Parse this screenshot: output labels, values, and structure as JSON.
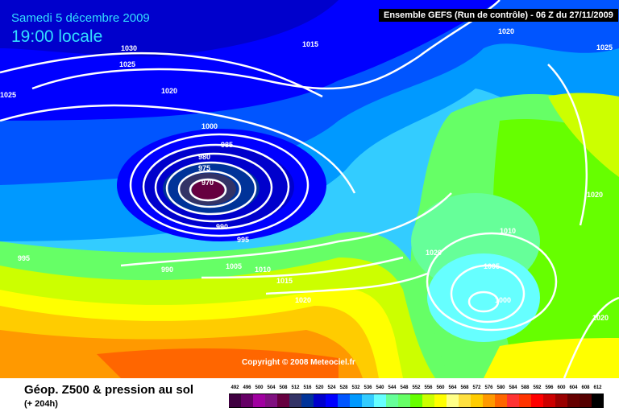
{
  "header": {
    "date": "Samedi 5 décembre 2009",
    "time": "19:00 locale",
    "run_info": "Ensemble GEFS (Run de contrôle)  -  06 Z du 27/11/2009"
  },
  "copyright": "Copyright © 2008 Meteociel.fr",
  "footer": {
    "title": "Géop. Z500 & pression au sol",
    "forecast_hour": "(+ 204h)"
  },
  "legend": [
    {
      "value": "492",
      "color": "#3f0040"
    },
    {
      "value": "496",
      "color": "#660066"
    },
    {
      "value": "500",
      "color": "#a000a0"
    },
    {
      "value": "504",
      "color": "#801080"
    },
    {
      "value": "508",
      "color": "#660040"
    },
    {
      "value": "512",
      "color": "#333366"
    },
    {
      "value": "516",
      "color": "#003399"
    },
    {
      "value": "520",
      "color": "#0000cc"
    },
    {
      "value": "524",
      "color": "#0000ff"
    },
    {
      "value": "528",
      "color": "#0055ff"
    },
    {
      "value": "532",
      "color": "#0099ff"
    },
    {
      "value": "536",
      "color": "#33ccff"
    },
    {
      "value": "540",
      "color": "#66ffff"
    },
    {
      "value": "544",
      "color": "#66ff99"
    },
    {
      "value": "548",
      "color": "#66ff66"
    },
    {
      "value": "552",
      "color": "#66ff00"
    },
    {
      "value": "556",
      "color": "#ccff00"
    },
    {
      "value": "560",
      "color": "#ffff00"
    },
    {
      "value": "564",
      "color": "#ffff88"
    },
    {
      "value": "568",
      "color": "#ffe040"
    },
    {
      "value": "572",
      "color": "#ffcc00"
    },
    {
      "value": "576",
      "color": "#ff9900"
    },
    {
      "value": "580",
      "color": "#ff6600"
    },
    {
      "value": "584",
      "color": "#ff3333"
    },
    {
      "value": "588",
      "color": "#ff3300"
    },
    {
      "value": "592",
      "color": "#ff0000"
    },
    {
      "value": "596",
      "color": "#cc0000"
    },
    {
      "value": "600",
      "color": "#990000"
    },
    {
      "value": "604",
      "color": "#660000"
    },
    {
      "value": "608",
      "color": "#550000"
    },
    {
      "value": "612",
      "color": "#000000"
    }
  ],
  "isobar_labels": [
    "1030",
    "1025",
    "1020",
    "1015",
    "1000",
    "985",
    "980",
    "975",
    "970",
    "990",
    "995",
    "1005",
    "1010",
    "1015",
    "1020",
    "1025",
    "995",
    "990",
    "1020",
    "1010",
    "1005",
    "1000",
    "1020",
    "1020",
    "1020",
    "1025"
  ]
}
